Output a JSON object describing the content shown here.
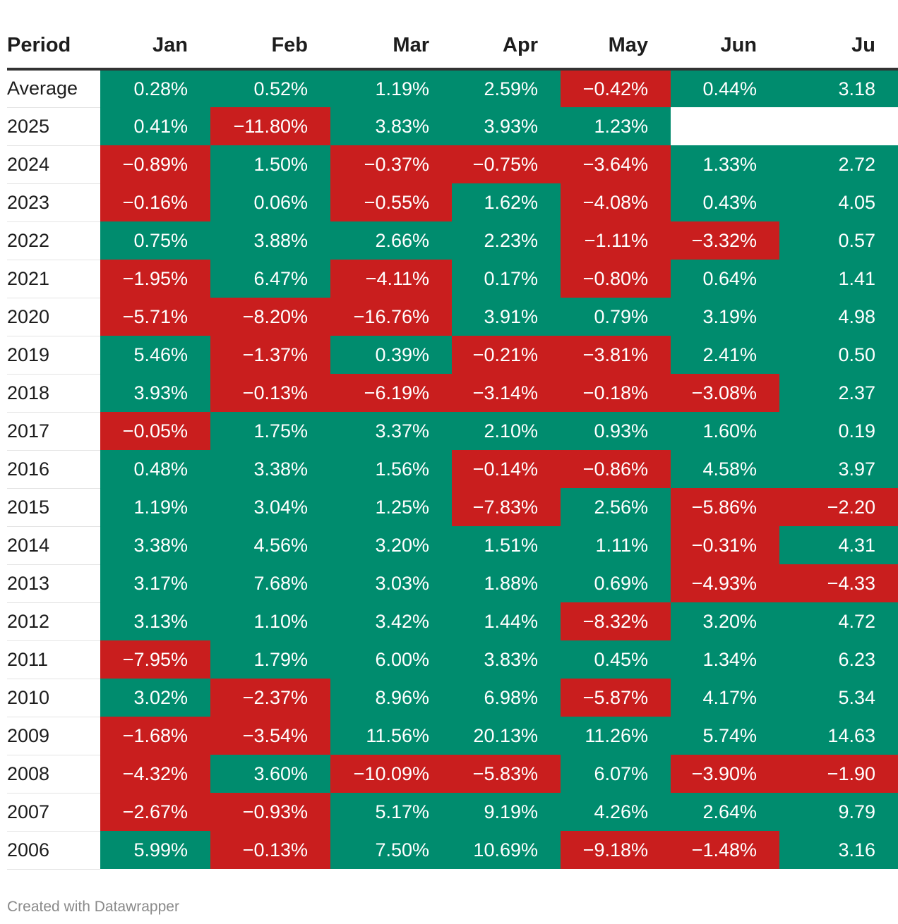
{
  "chart_data": {
    "type": "table",
    "colors": {
      "positive": "#008c6e",
      "negative": "#c91e1e"
    },
    "columns": [
      "Period",
      "Jan",
      "Feb",
      "Mar",
      "Apr",
      "May",
      "Jun",
      "Ju"
    ],
    "rows": [
      {
        "period": "Average",
        "values": [
          "0.28%",
          "0.52%",
          "1.19%",
          "2.59%",
          "−0.42%",
          "0.44%",
          "3.18"
        ]
      },
      {
        "period": "2025",
        "values": [
          "0.41%",
          "−11.80%",
          "3.83%",
          "3.93%",
          "1.23%",
          "",
          ""
        ]
      },
      {
        "period": "2024",
        "values": [
          "−0.89%",
          "1.50%",
          "−0.37%",
          "−0.75%",
          "−3.64%",
          "1.33%",
          "2.72"
        ]
      },
      {
        "period": "2023",
        "values": [
          "−0.16%",
          "0.06%",
          "−0.55%",
          "1.62%",
          "−4.08%",
          "0.43%",
          "4.05"
        ]
      },
      {
        "period": "2022",
        "values": [
          "0.75%",
          "3.88%",
          "2.66%",
          "2.23%",
          "−1.11%",
          "−3.32%",
          "0.57"
        ]
      },
      {
        "period": "2021",
        "values": [
          "−1.95%",
          "6.47%",
          "−4.11%",
          "0.17%",
          "−0.80%",
          "0.64%",
          "1.41"
        ]
      },
      {
        "period": "2020",
        "values": [
          "−5.71%",
          "−8.20%",
          "−16.76%",
          "3.91%",
          "0.79%",
          "3.19%",
          "4.98"
        ]
      },
      {
        "period": "2019",
        "values": [
          "5.46%",
          "−1.37%",
          "0.39%",
          "−0.21%",
          "−3.81%",
          "2.41%",
          "0.50"
        ]
      },
      {
        "period": "2018",
        "values": [
          "3.93%",
          "−0.13%",
          "−6.19%",
          "−3.14%",
          "−0.18%",
          "−3.08%",
          "2.37"
        ]
      },
      {
        "period": "2017",
        "values": [
          "−0.05%",
          "1.75%",
          "3.37%",
          "2.10%",
          "0.93%",
          "1.60%",
          "0.19"
        ]
      },
      {
        "period": "2016",
        "values": [
          "0.48%",
          "3.38%",
          "1.56%",
          "−0.14%",
          "−0.86%",
          "4.58%",
          "3.97"
        ]
      },
      {
        "period": "2015",
        "values": [
          "1.19%",
          "3.04%",
          "1.25%",
          "−7.83%",
          "2.56%",
          "−5.86%",
          "−2.20"
        ]
      },
      {
        "period": "2014",
        "values": [
          "3.38%",
          "4.56%",
          "3.20%",
          "1.51%",
          "1.11%",
          "−0.31%",
          "4.31"
        ]
      },
      {
        "period": "2013",
        "values": [
          "3.17%",
          "7.68%",
          "3.03%",
          "1.88%",
          "0.69%",
          "−4.93%",
          "−4.33"
        ]
      },
      {
        "period": "2012",
        "values": [
          "3.13%",
          "1.10%",
          "3.42%",
          "1.44%",
          "−8.32%",
          "3.20%",
          "4.72"
        ]
      },
      {
        "period": "2011",
        "values": [
          "−7.95%",
          "1.79%",
          "6.00%",
          "3.83%",
          "0.45%",
          "1.34%",
          "6.23"
        ]
      },
      {
        "period": "2010",
        "values": [
          "3.02%",
          "−2.37%",
          "8.96%",
          "6.98%",
          "−5.87%",
          "4.17%",
          "5.34"
        ]
      },
      {
        "period": "2009",
        "values": [
          "−1.68%",
          "−3.54%",
          "11.56%",
          "20.13%",
          "11.26%",
          "5.74%",
          "14.63"
        ]
      },
      {
        "period": "2008",
        "values": [
          "−4.32%",
          "3.60%",
          "−10.09%",
          "−5.83%",
          "6.07%",
          "−3.90%",
          "−1.90"
        ]
      },
      {
        "period": "2007",
        "values": [
          "−2.67%",
          "−0.93%",
          "5.17%",
          "9.19%",
          "4.26%",
          "2.64%",
          "9.79"
        ]
      },
      {
        "period": "2006",
        "values": [
          "5.99%",
          "−0.13%",
          "7.50%",
          "10.69%",
          "−9.18%",
          "−1.48%",
          "3.16"
        ]
      }
    ]
  },
  "footer": {
    "credit": "Created with Datawrapper"
  }
}
